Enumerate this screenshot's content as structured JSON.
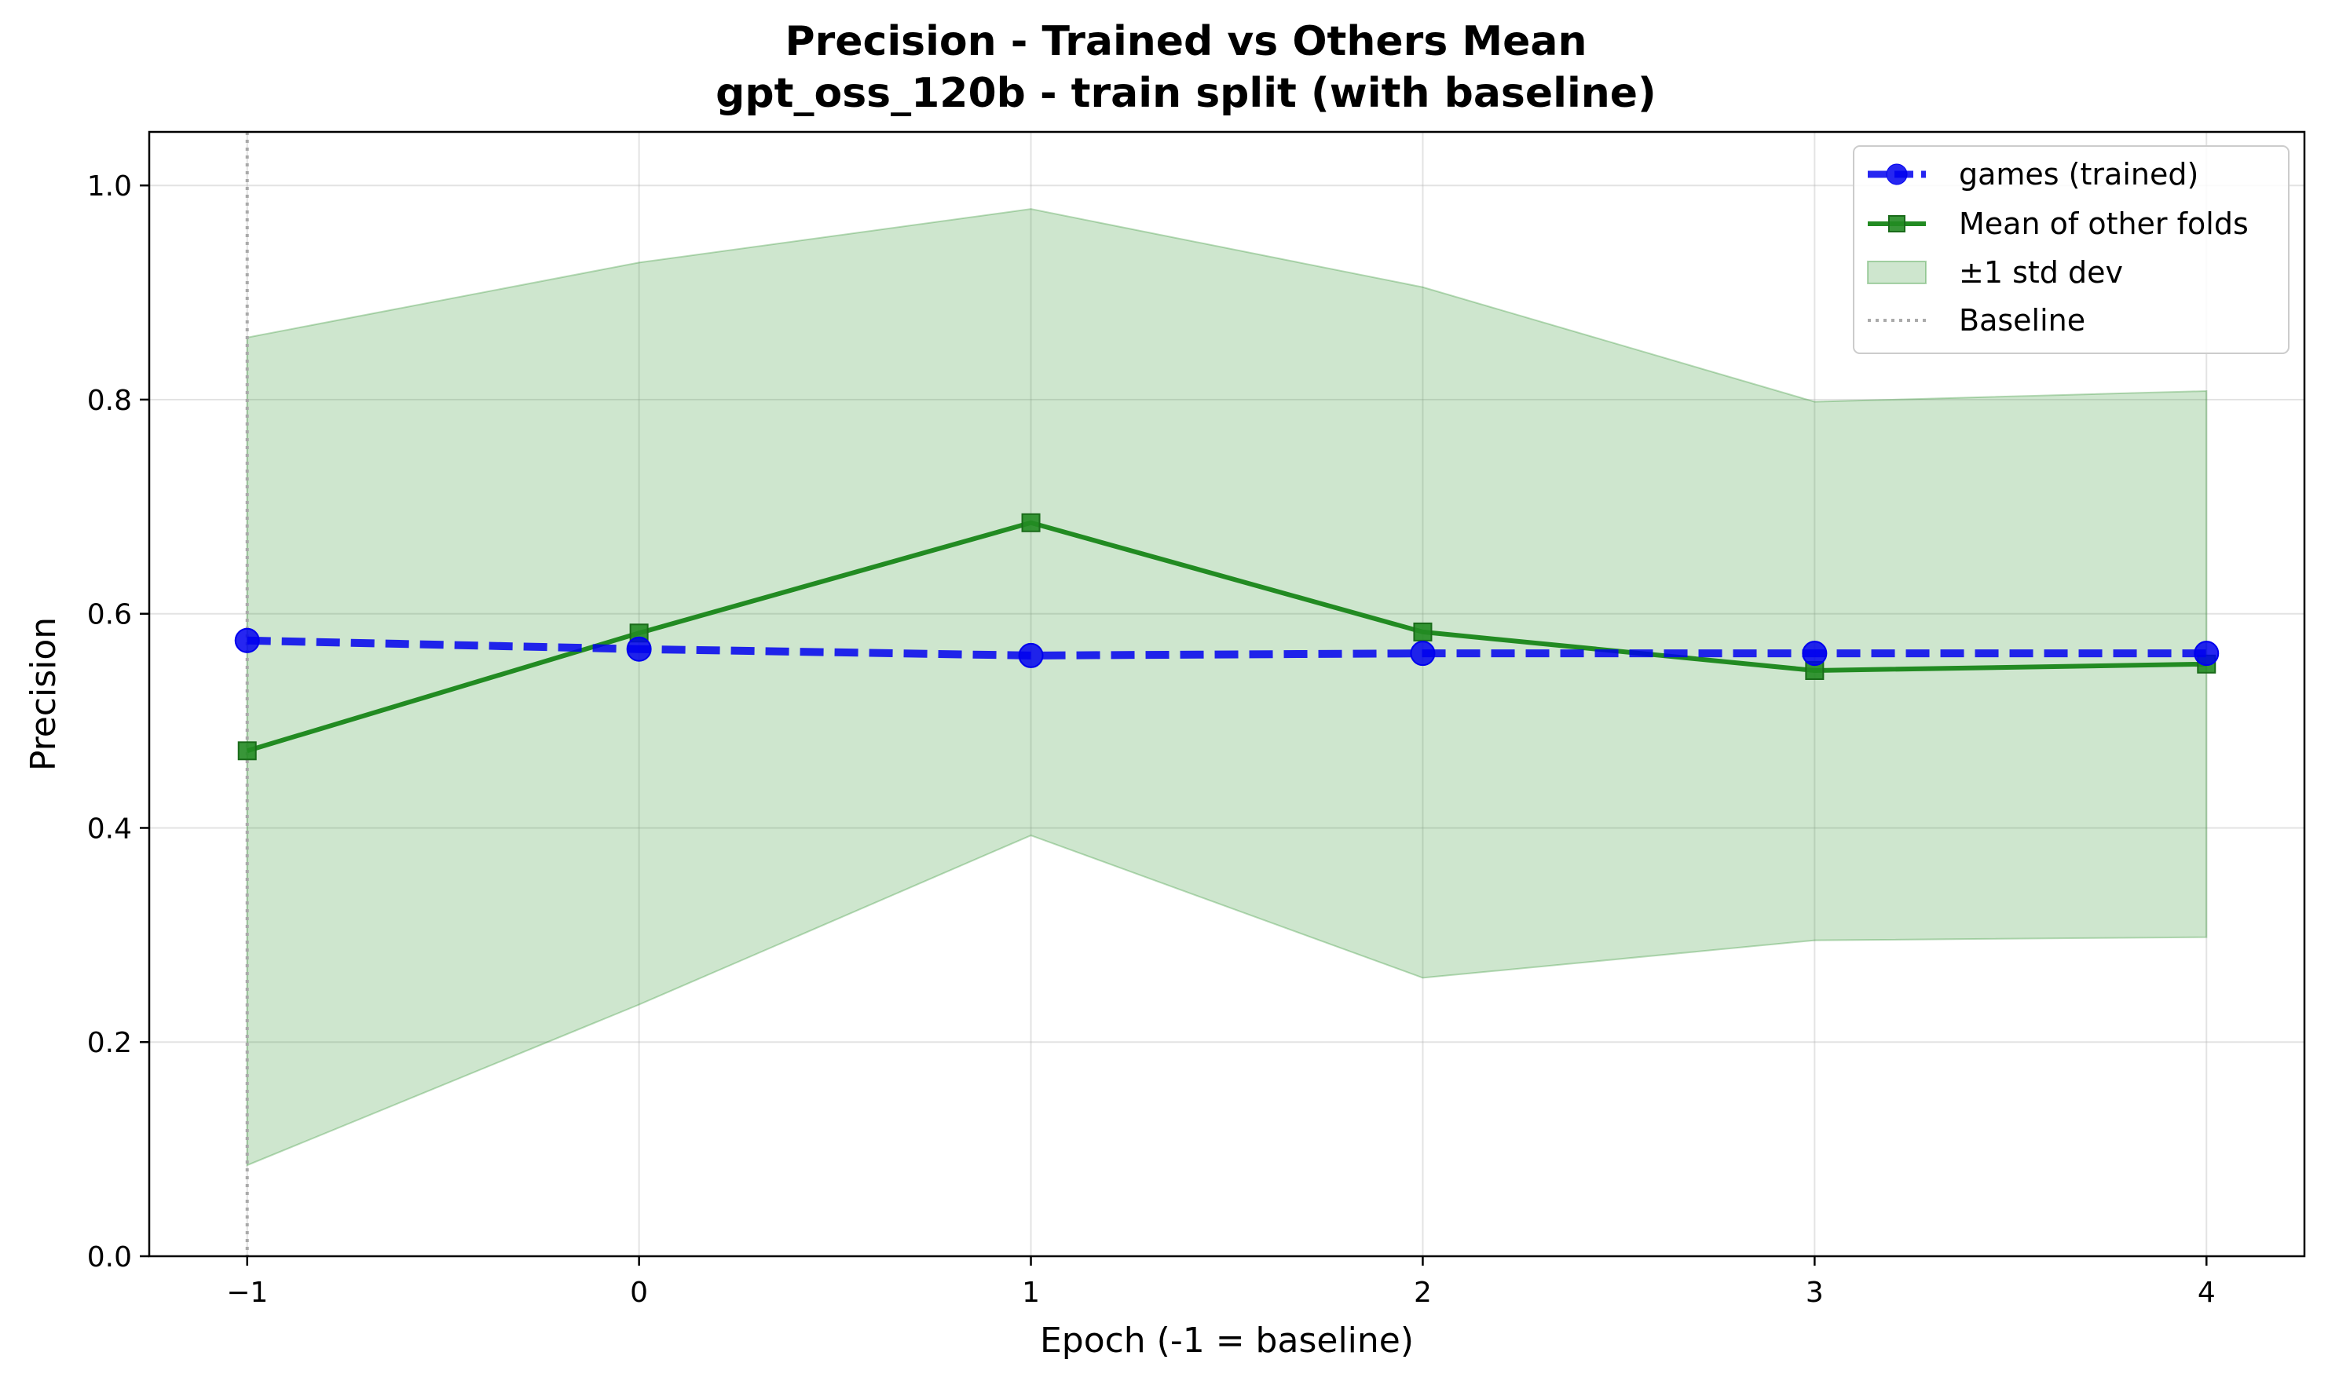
{
  "chart_data": {
    "type": "line",
    "title": "Precision - Trained vs Others Mean",
    "subtitle": "gpt_oss_120b - train split (with baseline)",
    "xlabel": "Epoch (-1 = baseline)",
    "ylabel": "Precision",
    "xlim": [
      -1.25,
      4.25
    ],
    "ylim": [
      0.0,
      1.05
    ],
    "x_ticks": [
      -1,
      0,
      1,
      2,
      3,
      4
    ],
    "x_tick_labels": [
      "−1",
      "0",
      "1",
      "2",
      "3",
      "4"
    ],
    "y_ticks": [
      0.0,
      0.2,
      0.4,
      0.6,
      0.8,
      1.0
    ],
    "y_tick_labels": [
      "0.0",
      "0.2",
      "0.4",
      "0.6",
      "0.8",
      "1.0"
    ],
    "grid": true,
    "legend_position": "top-right",
    "x": [
      -1,
      0,
      1,
      2,
      3,
      4
    ],
    "series": [
      {
        "name": "games (trained)",
        "style": "dashed",
        "marker": "circle",
        "color": "#0000ee",
        "values": [
          0.575,
          0.567,
          0.561,
          0.563,
          0.563,
          0.563
        ]
      },
      {
        "name": "Mean of other folds",
        "style": "solid",
        "marker": "square",
        "color": "#228b22",
        "values": [
          0.472,
          0.582,
          0.685,
          0.583,
          0.547,
          0.553
        ]
      }
    ],
    "band": {
      "name": "±1 std dev",
      "color": "#228b22",
      "lower": [
        0.085,
        0.235,
        0.393,
        0.26,
        0.295,
        0.298
      ],
      "upper": [
        0.858,
        0.928,
        0.978,
        0.905,
        0.798,
        0.808
      ]
    },
    "baseline": {
      "name": "Baseline",
      "x": -1,
      "color": "#aaaaaa",
      "style": "dotted"
    }
  }
}
